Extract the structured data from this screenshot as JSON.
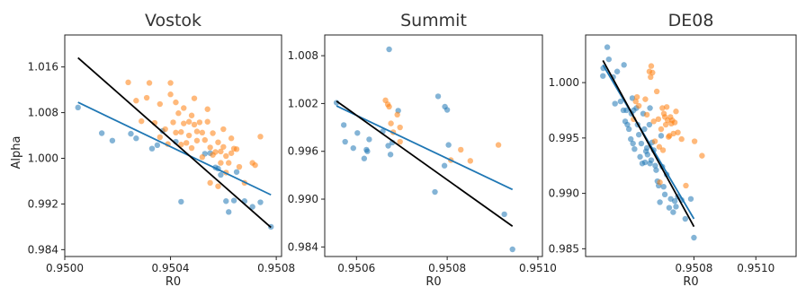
{
  "figure": {
    "ylabel": "Alpha"
  },
  "chart_data": [
    {
      "type": "scatter",
      "title": "Vostok",
      "xlabel": "R0",
      "ylabel": "Alpha",
      "xlim": [
        0.95,
        0.95082
      ],
      "ylim": [
        0.9828,
        1.0216
      ],
      "xticks": [
        0.95,
        0.9504,
        0.9508
      ],
      "xtick_labels": [
        "0.9500",
        "0.9504",
        "0.9508"
      ],
      "yticks": [
        0.984,
        0.992,
        1.0,
        1.008,
        1.016
      ],
      "ytick_labels": [
        "0.984",
        "0.992",
        "1.000",
        "1.008",
        "1.016"
      ],
      "grid": false,
      "colors": {
        "blue_points": "#1f77b4",
        "orange_points": "#ff7f0e",
        "blue_fit": "#1f77b4",
        "black_fit": "#000000"
      },
      "series": [
        {
          "points": [
            [
              0.95005,
              1.0089
            ],
            [
              0.95014,
              1.0044
            ],
            [
              0.95018,
              1.0031
            ],
            [
              0.95025,
              1.0043
            ],
            [
              0.95027,
              1.0035
            ],
            [
              0.95033,
              1.0017
            ],
            [
              0.95035,
              1.0023
            ],
            [
              0.95037,
              1.0048
            ],
            [
              0.95042,
              1.0029
            ],
            [
              0.95044,
              0.9924
            ],
            [
              0.95053,
              1.0008
            ],
            [
              0.95055,
              1.0009
            ],
            [
              0.95057,
              0.9984
            ],
            [
              0.95058,
              0.9982
            ],
            [
              0.95059,
              0.9971
            ],
            [
              0.95061,
              0.9925
            ],
            [
              0.95062,
              0.9906
            ],
            [
              0.95064,
              0.9926
            ],
            [
              0.95065,
              0.9976
            ],
            [
              0.95068,
              0.9925
            ],
            [
              0.95071,
              0.9915
            ],
            [
              0.95074,
              0.9923
            ],
            [
              0.95078,
              0.988
            ]
          ]
        },
        {
          "points": [
            [
              0.95024,
              1.0133
            ],
            [
              0.95027,
              1.0101
            ],
            [
              0.95029,
              1.0065
            ],
            [
              0.95031,
              1.0106
            ],
            [
              0.95032,
              1.0132
            ],
            [
              0.95034,
              1.0062
            ],
            [
              0.95036,
              1.0037
            ],
            [
              0.95036,
              1.0095
            ],
            [
              0.95038,
              1.0051
            ],
            [
              0.95039,
              1.0025
            ],
            [
              0.9504,
              1.0132
            ],
            [
              0.9504,
              1.0112
            ],
            [
              0.95041,
              1.0063
            ],
            [
              0.95042,
              1.0045
            ],
            [
              0.95042,
              1.0098
            ],
            [
              0.95043,
              1.0079
            ],
            [
              0.95044,
              1.0024
            ],
            [
              0.95044,
              1.0046
            ],
            [
              0.95045,
              1.0061
            ],
            [
              0.95045,
              1.0088
            ],
            [
              0.95046,
              1.0027
            ],
            [
              0.95047,
              1.0064
            ],
            [
              0.95047,
              1.004
            ],
            [
              0.95048,
              1.0018
            ],
            [
              0.95048,
              1.0075
            ],
            [
              0.95049,
              1.0059
            ],
            [
              0.95049,
              1.0105
            ],
            [
              0.9505,
              1.0031
            ],
            [
              0.9505,
              1.0047
            ],
            [
              0.95051,
              1.0063
            ],
            [
              0.95052,
              1.0002
            ],
            [
              0.95052,
              1.0045
            ],
            [
              0.95053,
              1.0032
            ],
            [
              0.95054,
              1.0064
            ],
            [
              0.95054,
              1.0086
            ],
            [
              0.95055,
              1.0019
            ],
            [
              0.95055,
              0.9957
            ],
            [
              0.95056,
              1.0044
            ],
            [
              0.95057,
              1.0011
            ],
            [
              0.95058,
              0.9951
            ],
            [
              0.95058,
              1.0028
            ],
            [
              0.95059,
              1.0012
            ],
            [
              0.95059,
              0.9992
            ],
            [
              0.9506,
              1.002
            ],
            [
              0.9506,
              1.0051
            ],
            [
              0.95061,
              1.0004
            ],
            [
              0.95061,
              0.9975
            ],
            [
              0.95062,
              0.9992
            ],
            [
              0.95063,
              1.0035
            ],
            [
              0.95064,
              1.0017
            ],
            [
              0.95065,
              1.0016
            ],
            [
              0.95066,
              0.9985
            ],
            [
              0.95068,
              0.9957
            ],
            [
              0.95071,
              0.9992
            ],
            [
              0.95072,
              0.9988
            ],
            [
              0.95074,
              1.0038
            ],
            [
              0.95063,
              1.0009
            ],
            [
              0.95056,
              1.0006
            ]
          ]
        },
        {
          "type": "line",
          "points": [
            [
              0.95005,
              1.0098
            ],
            [
              0.95078,
              0.9936
            ]
          ]
        },
        {
          "type": "line",
          "points": [
            [
              0.95005,
              1.0176
            ],
            [
              0.95078,
              0.9879
            ]
          ]
        }
      ]
    },
    {
      "type": "scatter",
      "title": "Summit",
      "xlabel": "R0",
      "ylabel": "",
      "xlim": [
        0.95053,
        0.95101
      ],
      "ylim": [
        0.9828,
        1.0106
      ],
      "xticks": [
        0.9506,
        0.9508,
        0.951
      ],
      "xtick_labels": [
        "0.9506",
        "0.9508",
        "0.9510"
      ],
      "yticks": [
        0.984,
        0.99,
        0.996,
        1.002,
        1.008
      ],
      "ytick_labels": [
        "0.984",
        "0.990",
        "0.996",
        "1.002",
        "1.008"
      ],
      "grid": false,
      "colors": {
        "blue_points": "#1f77b4",
        "orange_points": "#ff7f0e",
        "blue_fit": "#1f77b4",
        "black_fit": "#000000"
      },
      "series": [
        {
          "points": [
            [
              0.950556,
              1.0021
            ],
            [
              0.950572,
              0.9993
            ],
            [
              0.950575,
              0.9972
            ],
            [
              0.950593,
              0.9964
            ],
            [
              0.950602,
              0.9983
            ],
            [
              0.950617,
              0.9951
            ],
            [
              0.950622,
              0.9962
            ],
            [
              0.950624,
              0.996
            ],
            [
              0.950628,
              0.9975
            ],
            [
              0.950658,
              0.9985
            ],
            [
              0.95067,
              0.9967
            ],
            [
              0.950672,
              1.0088
            ],
            [
              0.950675,
              0.9956
            ],
            [
              0.950679,
              0.9971
            ],
            [
              0.950692,
              1.0011
            ],
            [
              0.950773,
              0.9909
            ],
            [
              0.95078,
              1.0029
            ],
            [
              0.950794,
              0.9942
            ],
            [
              0.950795,
              1.0016
            ],
            [
              0.9508,
              1.0012
            ],
            [
              0.950803,
              0.9968
            ],
            [
              0.950926,
              0.9881
            ],
            [
              0.950944,
              0.9837
            ]
          ]
        },
        {
          "points": [
            [
              0.950664,
              1.0024
            ],
            [
              0.950669,
              1.0019
            ],
            [
              0.950672,
              1.0016
            ],
            [
              0.950676,
              0.9995
            ],
            [
              0.950681,
              0.9984
            ],
            [
              0.95069,
              1.0006
            ],
            [
              0.950696,
              0.999
            ],
            [
              0.950808,
              0.9949
            ],
            [
              0.95083,
              0.9962
            ],
            [
              0.950851,
              0.9948
            ],
            [
              0.950913,
              0.9968
            ],
            [
              0.950696,
              0.9972
            ]
          ]
        },
        {
          "type": "line",
          "points": [
            [
              0.950556,
              1.0017
            ],
            [
              0.950944,
              0.9912
            ]
          ]
        },
        {
          "type": "line",
          "points": [
            [
              0.950556,
              1.0023
            ],
            [
              0.950944,
              0.9866
            ]
          ]
        }
      ]
    },
    {
      "type": "scatter",
      "title": "DE08",
      "xlabel": "R0",
      "ylabel": "",
      "xlim": [
        0.95045,
        0.95113
      ],
      "ylim": [
        0.9843,
        1.0043
      ],
      "xticks": [
        0.9508,
        0.951
      ],
      "xtick_labels": [
        "0.9508",
        "0.9510"
      ],
      "yticks": [
        0.985,
        0.99,
        0.995,
        1.0
      ],
      "ytick_labels": [
        "0.985",
        "0.990",
        "0.995",
        "1.000"
      ],
      "grid": false,
      "colors": {
        "blue_points": "#1f77b4",
        "orange_points": "#ff7f0e",
        "blue_fit": "#1f77b4",
        "black_fit": "#000000"
      },
      "series": [
        {
          "points": [
            [
              0.950506,
              1.0006
            ],
            [
              0.950507,
              1.0013
            ],
            [
              0.95052,
              1.0032
            ],
            [
              0.950525,
              1.0021
            ],
            [
              0.950539,
              1.0005
            ],
            [
              0.950545,
              0.9981
            ],
            [
              0.950552,
              1.001
            ],
            [
              0.950563,
              0.9983
            ],
            [
              0.950572,
              0.9975
            ],
            [
              0.950574,
              1.0016
            ],
            [
              0.950578,
              0.9965
            ],
            [
              0.950582,
              0.9975
            ],
            [
              0.950585,
              0.9962
            ],
            [
              0.95059,
              0.9958
            ],
            [
              0.950596,
              0.9949
            ],
            [
              0.950598,
              0.9972
            ],
            [
              0.950601,
              0.9986
            ],
            [
              0.950603,
              0.9945
            ],
            [
              0.950605,
              0.9975
            ],
            [
              0.950608,
              0.994
            ],
            [
              0.950614,
              0.9977
            ],
            [
              0.950618,
              0.9962
            ],
            [
              0.950622,
              0.9953
            ],
            [
              0.950626,
              0.9933
            ],
            [
              0.95063,
              0.9945
            ],
            [
              0.950633,
              0.9927
            ],
            [
              0.950636,
              0.9972
            ],
            [
              0.95064,
              0.9958
            ],
            [
              0.950642,
              0.9928
            ],
            [
              0.950645,
              0.9938
            ],
            [
              0.950648,
              0.9941
            ],
            [
              0.95065,
              0.9935
            ],
            [
              0.950656,
              0.9962
            ],
            [
              0.950658,
              0.9927
            ],
            [
              0.950662,
              0.993
            ],
            [
              0.950665,
              0.9946
            ],
            [
              0.95067,
              0.9939
            ],
            [
              0.950675,
              0.9925
            ],
            [
              0.950678,
              0.9921
            ],
            [
              0.950682,
              0.9911
            ],
            [
              0.950686,
              0.9907
            ],
            [
              0.95069,
              0.9892
            ],
            [
              0.950694,
              0.9952
            ],
            [
              0.950698,
              0.9924
            ],
            [
              0.950702,
              0.9906
            ],
            [
              0.950706,
              0.9899
            ],
            [
              0.950712,
              0.9917
            ],
            [
              0.95072,
              0.9887
            ],
            [
              0.950725,
              0.9895
            ],
            [
              0.950733,
              0.9883
            ],
            [
              0.950738,
              0.9893
            ],
            [
              0.950742,
              0.9888
            ],
            [
              0.950748,
              0.9897
            ],
            [
              0.95076,
              0.9894
            ],
            [
              0.950772,
              0.9877
            ],
            [
              0.95079,
              0.9895
            ],
            [
              0.9508,
              0.986
            ],
            [
              0.950658,
              0.9977
            ]
          ]
        },
        {
          "points": [
            [
              0.950605,
              0.9967
            ],
            [
              0.950612,
              0.9983
            ],
            [
              0.950616,
              0.9987
            ],
            [
              0.950622,
              0.9979
            ],
            [
              0.950643,
              0.9985
            ],
            [
              0.950648,
              0.9971
            ],
            [
              0.950656,
              1.001
            ],
            [
              0.95066,
              1.0005
            ],
            [
              0.950662,
              1.0015
            ],
            [
              0.950666,
              1.0009
            ],
            [
              0.95067,
              0.9965
            ],
            [
              0.950674,
              0.9947
            ],
            [
              0.95068,
              0.9992
            ],
            [
              0.950685,
              0.9967
            ],
            [
              0.950688,
              0.9942
            ],
            [
              0.95069,
              0.991
            ],
            [
              0.950694,
              0.9958
            ],
            [
              0.950698,
              0.9977
            ],
            [
              0.9507,
              0.9939
            ],
            [
              0.950703,
              0.9972
            ],
            [
              0.950706,
              0.9969
            ],
            [
              0.950709,
              0.9962
            ],
            [
              0.950712,
              0.9978
            ],
            [
              0.950715,
              0.9966
            ],
            [
              0.950718,
              0.9951
            ],
            [
              0.950721,
              0.9952
            ],
            [
              0.950724,
              0.9969
            ],
            [
              0.950727,
              0.9963
            ],
            [
              0.95073,
              0.9966
            ],
            [
              0.950734,
              0.9954
            ],
            [
              0.950738,
              0.9964
            ],
            [
              0.950742,
              0.9974
            ],
            [
              0.950748,
              0.9955
            ],
            [
              0.95076,
              0.9949
            ],
            [
              0.950774,
              0.9907
            ],
            [
              0.950802,
              0.9947
            ],
            [
              0.950826,
              0.9934
            ]
          ]
        },
        {
          "type": "line",
          "points": [
            [
              0.950506,
              1.0016
            ],
            [
              0.9508,
              0.9877
            ]
          ]
        },
        {
          "type": "line",
          "points": [
            [
              0.950506,
              1.002
            ],
            [
              0.9508,
              0.987
            ]
          ]
        }
      ]
    }
  ]
}
